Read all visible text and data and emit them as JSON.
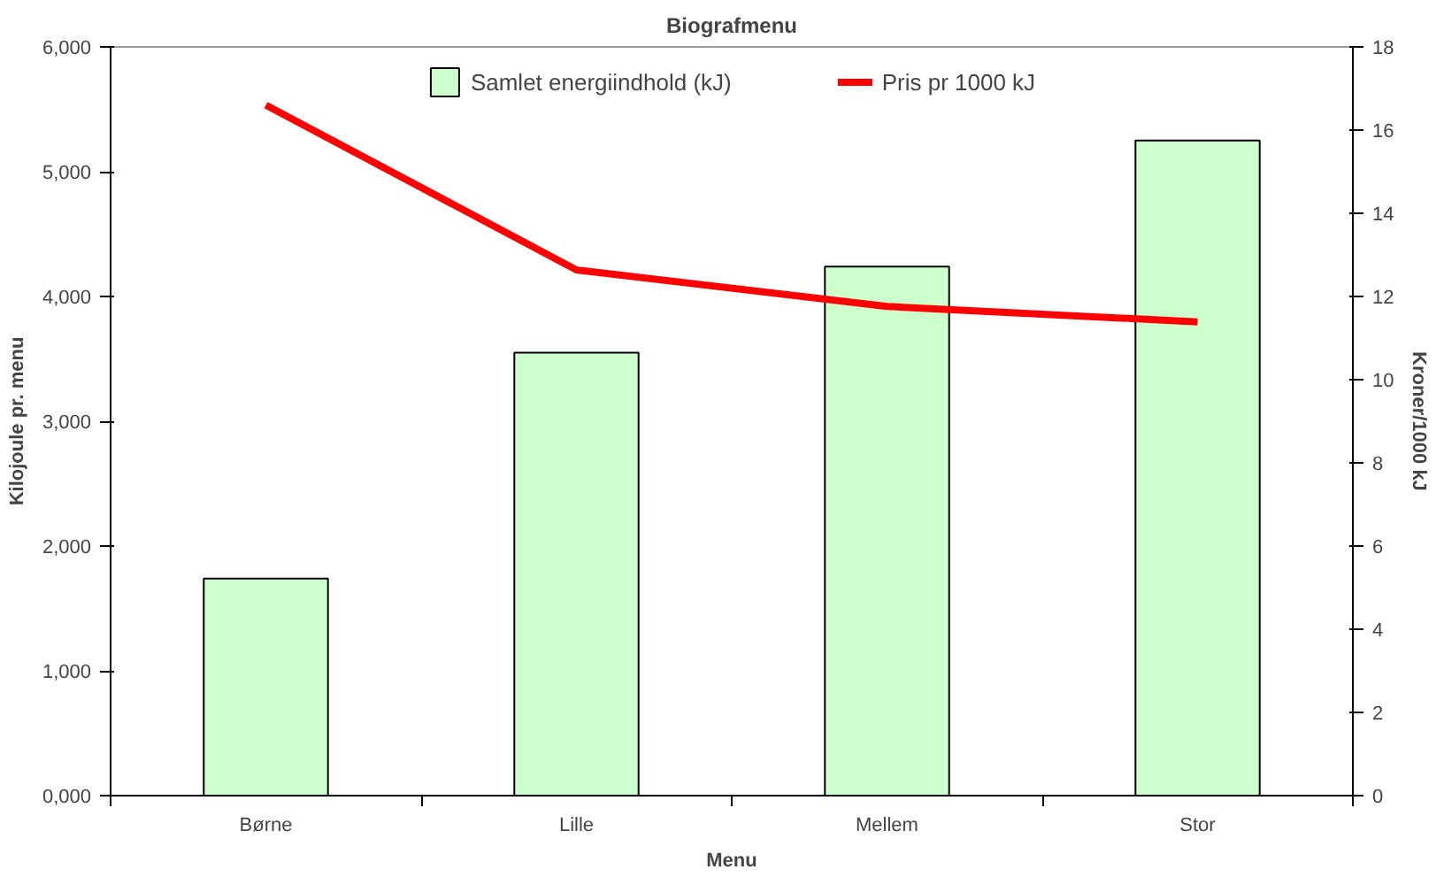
{
  "chart_data": {
    "type": "bar",
    "title": "Biografmenu",
    "xlabel": "Menu",
    "ylabel": "Kilojoule pr. menu",
    "y2label": "Kroner/1000 kJ",
    "categories": [
      "Børne",
      "Lille",
      "Mellem",
      "Stor"
    ],
    "series": [
      {
        "name": "Samlet energiindhold (kJ)",
        "color": "#ccffcc",
        "values": [
          1740,
          3550,
          4240,
          5250
        ]
      },
      {
        "name": "Pris pr 1000 kJ",
        "type": "line",
        "axis": "y2",
        "color": "#ff0000",
        "values": [
          16.6,
          12.64,
          11.76,
          11.39
        ]
      }
    ],
    "ylim": [
      0,
      6000
    ],
    "yticks": [
      {
        "value": 0,
        "label": "0,000"
      },
      {
        "value": 1000,
        "label": "1,000"
      },
      {
        "value": 2000,
        "label": "2,000"
      },
      {
        "value": 3000,
        "label": "3,000"
      },
      {
        "value": 4000,
        "label": "4,000"
      },
      {
        "value": 5000,
        "label": "5,000"
      },
      {
        "value": 6000,
        "label": "6,000"
      }
    ],
    "y2lim": [
      0,
      18
    ],
    "y2ticks": [
      0,
      2,
      4,
      6,
      8,
      10,
      12,
      14,
      16,
      18
    ],
    "legend": "top",
    "grid": false,
    "marker": "none"
  }
}
